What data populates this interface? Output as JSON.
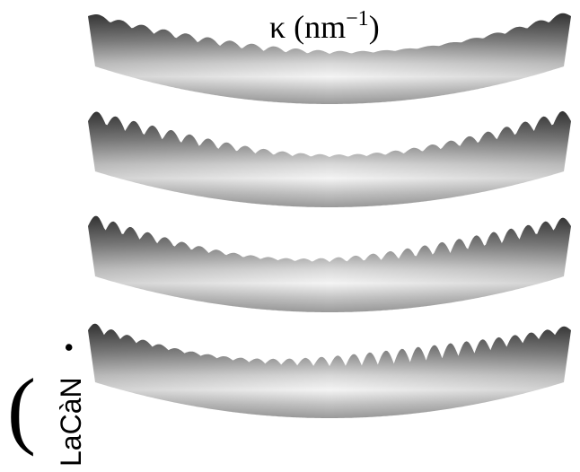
{
  "label": {
    "main": "κ (nm",
    "sup": "−1",
    "close": ")"
  },
  "side": {
    "paren": "(",
    "text": "LaCàN",
    "dot": "•"
  }
}
